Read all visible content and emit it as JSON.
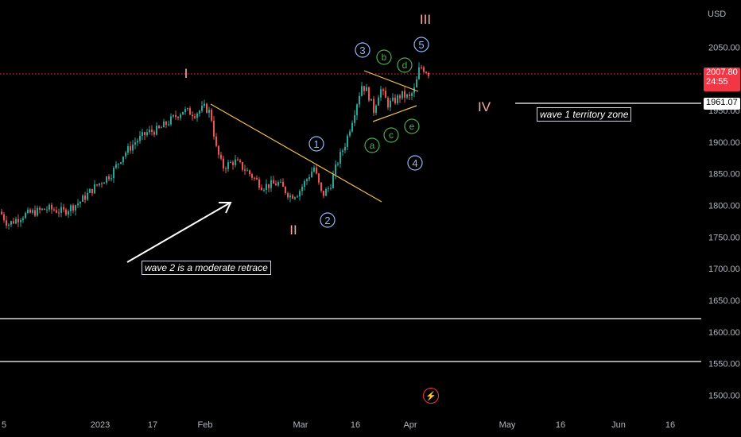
{
  "chart_data": {
    "type": "candlestick",
    "currency": "USD",
    "y_ticks": [
      "2050.00",
      "2000.00",
      "1950.00",
      "1900.00",
      "1850.00",
      "1800.00",
      "1750.00",
      "1700.00",
      "1650.00",
      "1600.00",
      "1550.00",
      "1500.00"
    ],
    "x_ticks": [
      "5",
      "2023",
      "17",
      "Feb",
      "Mar",
      "16",
      "Apr",
      "May",
      "16",
      "Jun",
      "16"
    ],
    "ylim": [
      1470,
      2100
    ],
    "price_series": [
      {
        "label": "5",
        "close": 1790
      },
      {
        "label": "2023",
        "close": 1840
      },
      {
        "label": "17",
        "close": 1910
      },
      {
        "label": "Feb",
        "close": 1958
      },
      {
        "label": "Mar",
        "close": 1820
      },
      {
        "label": "16",
        "close": 1990
      },
      {
        "label": "Apr",
        "close": 2007.8
      }
    ],
    "current_price": "2007.80",
    "countdown": "24:55",
    "level_price": "1961.07",
    "horizontal_lines": [
      1961.07,
      1613,
      1546
    ],
    "wave_labels": {
      "primary": [
        "I",
        "II",
        "III",
        "IV"
      ],
      "intermediate": [
        "1",
        "2",
        "3",
        "4",
        "5"
      ],
      "triangle": [
        "a",
        "b",
        "c",
        "d",
        "e"
      ]
    },
    "annotations": {
      "wave2_note": "wave 2 is a moderate retrace",
      "territory_note": "wave 1 territory zone"
    },
    "colors": {
      "up": "#26a69a",
      "down": "#ef5350",
      "trendline": "#f0c048",
      "primary_label": "#f7a8a8",
      "intermediate_label": "#90b8f8",
      "triangle_label": "#4caf50",
      "price_tag": "#f23645",
      "dotted_level": "#f23645"
    }
  },
  "axis": {
    "currency": "USD"
  },
  "price_axis_tags": {
    "current": "2007.80",
    "countdown": "24:55",
    "level": "1961.07"
  },
  "annotations": {
    "wave2_note": "wave 2 is a moderate retrace",
    "territory_note": "wave 1 territory zone"
  },
  "icons": {
    "alert": "lightning-alert-icon"
  }
}
